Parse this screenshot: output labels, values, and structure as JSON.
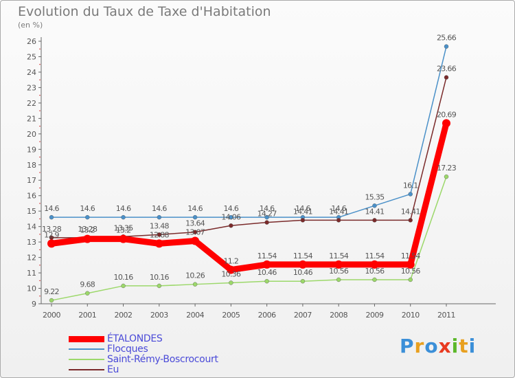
{
  "chart_data": {
    "type": "line",
    "title": "Evolution du Taux de Taxe d'Habitation",
    "ylabel": "(en %)",
    "xlabel": "",
    "ylim": [
      9,
      26
    ],
    "x": [
      "2000",
      "2001",
      "2002",
      "2003",
      "2004",
      "2005",
      "2006",
      "2007",
      "2008",
      "2009",
      "2010",
      "2011"
    ],
    "yticks": [
      9,
      10,
      11,
      12,
      13,
      14,
      15,
      16,
      17,
      18,
      19,
      20,
      21,
      22,
      23,
      24,
      25,
      26
    ],
    "series": [
      {
        "name": "Flocques",
        "color": "#4a90c8",
        "values": [
          14.6,
          14.6,
          14.6,
          14.6,
          14.6,
          14.6,
          14.6,
          14.6,
          14.6,
          15.35,
          16.1,
          25.66
        ],
        "labels": [
          "14.6",
          "14.6",
          "14.6",
          "14.6",
          "14.6",
          "14.6",
          "14.6",
          "14.6",
          "14.6",
          "15.35",
          "16.1",
          "25.66"
        ]
      },
      {
        "name": "Saint-Rémy-Boscrocourt",
        "color": "#9cd86a",
        "values": [
          9.22,
          9.68,
          10.16,
          10.16,
          10.26,
          10.36,
          10.46,
          10.46,
          10.56,
          10.56,
          10.56,
          17.23
        ],
        "labels": [
          "9.22",
          "9.68",
          "10.16",
          "10.16",
          "10.26",
          "10.36",
          "10.46",
          "10.46",
          "10.56",
          "10.56",
          "10.56",
          "17.23"
        ]
      },
      {
        "name": "Eu",
        "color": "#7a2a2a",
        "values": [
          13.28,
          13.28,
          13.35,
          13.48,
          13.64,
          14.06,
          14.27,
          14.41,
          14.41,
          14.41,
          14.41,
          23.66
        ],
        "labels": [
          "13.28",
          "13.28",
          "13.35",
          "13.48",
          "13.64",
          "14.06",
          "14.27",
          "14.41",
          "14.41",
          "14.41",
          "14.41",
          "23.66"
        ]
      },
      {
        "name": "ÉTALONDES",
        "color": "#ff0000",
        "values": [
          12.9,
          13.2,
          13.2,
          12.9,
          13.07,
          11.2,
          11.54,
          11.54,
          11.54,
          11.54,
          11.54,
          20.69
        ],
        "labels": [
          "12.9",
          "13.2",
          "13.2",
          "12.88",
          "13.07",
          "11.2",
          "11.54",
          "11.54",
          "11.54",
          "11.54",
          "11.54",
          "20.69"
        ]
      }
    ],
    "legend": [
      "ÉTALONDES",
      "Flocques",
      "Saint-Rémy-Boscrocourt",
      "Eu"
    ],
    "legend_position": "bottom-left",
    "grid": false
  },
  "logo": {
    "text": "Proxiti",
    "colors": [
      "#3b8fd8",
      "#e8a020",
      "#3b8fd8",
      "#e83a20",
      "#5cb82a",
      "#e8a020",
      "#3b8fd8"
    ]
  }
}
